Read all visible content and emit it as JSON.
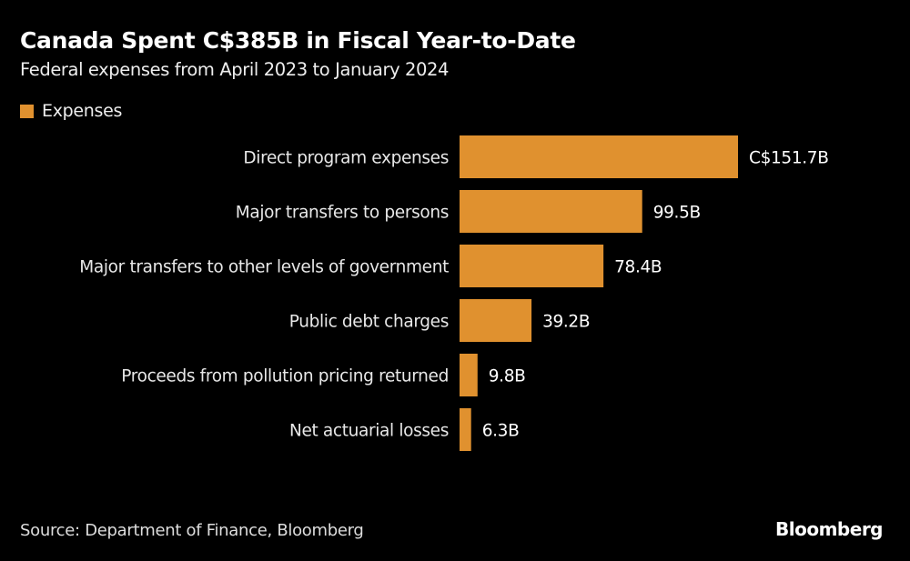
{
  "chart_data": {
    "type": "bar",
    "orientation": "horizontal",
    "title": "Canada Spent C$385B in Fiscal Year-to-Date",
    "subtitle": "Federal expenses from April 2023 to January 2024",
    "categories": [
      "Direct program expenses",
      "Major transfers to persons",
      "Major transfers to other levels of government",
      "Public debt charges",
      "Proceeds from pollution pricing returned",
      "Net actuarial losses"
    ],
    "series": [
      {
        "name": "Expenses",
        "values": [
          151.7,
          99.5,
          78.4,
          39.2,
          9.8,
          6.3
        ],
        "color": "#e0912f"
      }
    ],
    "data_labels": [
      "C$151.7B",
      "99.5B",
      "78.4B",
      "39.2B",
      "9.8B",
      "6.3B"
    ],
    "legend_position": "top-left",
    "grid": false,
    "xlim": [
      0,
      151.7
    ]
  },
  "legend": {
    "label": "Expenses"
  },
  "footer": {
    "source": "Source: Department of Finance, Bloomberg",
    "logo": "Bloomberg"
  }
}
